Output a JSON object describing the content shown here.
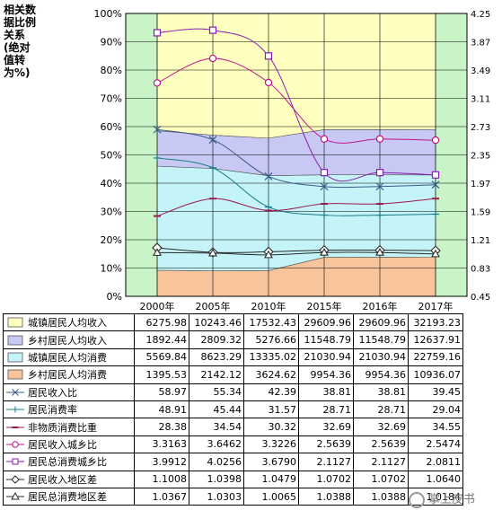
{
  "chart_data": {
    "type": "area",
    "ylabel_left": "相关数据比例关系(绝对值转为%)",
    "categories": [
      "2000年",
      "2005年",
      "2010年",
      "2015年",
      "2016年",
      "2017年"
    ],
    "y_left_ticks": [
      "0%",
      "10%",
      "20%",
      "30%",
      "40%",
      "50%",
      "60%",
      "70%",
      "80%",
      "90%",
      "100%"
    ],
    "y_right_ticks": [
      "0.45",
      "0.83",
      "1.21",
      "1.59",
      "1.97",
      "2.35",
      "2.73",
      "3.11",
      "3.49",
      "3.87",
      "4.25"
    ],
    "ylim_left": [
      0,
      100
    ],
    "ylim_right": [
      0.45,
      4.25
    ],
    "grid": true,
    "area_series": [
      {
        "name": "城镇居民人均收入",
        "color": "#ffffc0",
        "values": [
          6275.98,
          10243.46,
          17532.43,
          29609.96,
          29609.96,
          32193.23
        ]
      },
      {
        "name": "乡村居民人均收入",
        "color": "#c8c8f4",
        "values": [
          1892.44,
          2809.32,
          5276.66,
          11548.79,
          11548.79,
          12637.91
        ]
      },
      {
        "name": "城镇居民人均消费",
        "color": "#c4f4f8",
        "values": [
          5569.84,
          8623.29,
          13335.02,
          21030.94,
          21030.94,
          22759.16
        ]
      },
      {
        "name": "乡村居民人均消费",
        "color": "#f8c49c",
        "values": [
          1395.53,
          2142.12,
          3624.62,
          9954.36,
          9954.36,
          10936.07
        ]
      }
    ],
    "percent_series": [
      {
        "name": "居民收入比",
        "marker": "x",
        "color": "#3a5a8a",
        "values": [
          58.97,
          55.34,
          42.39,
          38.81,
          38.81,
          39.45
        ]
      },
      {
        "name": "居民消费率",
        "marker": "plus",
        "color": "#1a7a8a",
        "values": [
          48.91,
          45.44,
          31.57,
          28.71,
          28.71,
          29.04
        ]
      },
      {
        "name": "非物质消费比重",
        "marker": "dash",
        "color": "#9a1a4a",
        "values": [
          28.38,
          34.54,
          30.32,
          32.69,
          32.69,
          34.55
        ]
      }
    ],
    "ratio_series": [
      {
        "name": "居民收入城乡比",
        "marker": "circle",
        "color": "#c0158a",
        "values": [
          3.3163,
          3.6462,
          3.3226,
          2.5639,
          2.5639,
          2.5474
        ]
      },
      {
        "name": "居民总消费城乡比",
        "marker": "square",
        "color": "#8a1ab0",
        "values": [
          3.9912,
          4.0256,
          3.679,
          2.1127,
          2.1127,
          2.0811
        ]
      },
      {
        "name": "居民收入地区差",
        "marker": "diamond",
        "color": "#2a2a2a",
        "values": [
          1.1008,
          1.0398,
          1.0479,
          1.0702,
          1.0702,
          1.064
        ]
      },
      {
        "name": "居民总消费地区差",
        "marker": "triangle",
        "color": "#2a2a2a",
        "values": [
          1.0367,
          1.0303,
          1.0065,
          1.0388,
          1.0388,
          1.0184
        ]
      }
    ],
    "table": {
      "rows": [
        {
          "label": "城镇居民人均收入",
          "legend": "area",
          "color": "#ffffc0",
          "cells": [
            "6275.98",
            "10243.46",
            "17532.43",
            "29609.96",
            "29609.96",
            "32193.23"
          ]
        },
        {
          "label": "乡村居民人均收入",
          "legend": "area",
          "color": "#c8c8f4",
          "cells": [
            "1892.44",
            "2809.32",
            "5276.66",
            "11548.79",
            "11548.79",
            "12637.91"
          ]
        },
        {
          "label": "城镇居民人均消费",
          "legend": "area",
          "color": "#c4f4f8",
          "cells": [
            "5569.84",
            "8623.29",
            "13335.02",
            "21030.94",
            "21030.94",
            "22759.16"
          ]
        },
        {
          "label": "乡村居民人均消费",
          "legend": "area",
          "color": "#f8c49c",
          "cells": [
            "1395.53",
            "2142.12",
            "3624.62",
            "9954.36",
            "9954.36",
            "10936.07"
          ]
        },
        {
          "label": "居民收入比",
          "legend": "x",
          "color": "#3a5a8a",
          "cells": [
            "58.97",
            "55.34",
            "42.39",
            "38.81",
            "38.81",
            "39.45"
          ]
        },
        {
          "label": "居民消费率",
          "legend": "plus",
          "color": "#1a7a8a",
          "cells": [
            "48.91",
            "45.44",
            "31.57",
            "28.71",
            "28.71",
            "29.04"
          ]
        },
        {
          "label": "非物质消费比重",
          "legend": "dash",
          "color": "#9a1a4a",
          "cells": [
            "28.38",
            "34.54",
            "30.32",
            "32.69",
            "32.69",
            "34.55"
          ]
        },
        {
          "label": "居民收入城乡比",
          "legend": "circle",
          "color": "#c0158a",
          "cells": [
            "3.3163",
            "3.6462",
            "3.3226",
            "2.5639",
            "2.5639",
            "2.5474"
          ]
        },
        {
          "label": "居民总消费城乡比",
          "legend": "square",
          "color": "#8a1ab0",
          "cells": [
            "3.9912",
            "4.0256",
            "3.6790",
            "2.1127",
            "2.1127",
            "2.0811"
          ]
        },
        {
          "label": "居民收入地区差",
          "legend": "diamond",
          "color": "#2a2a2a",
          "cells": [
            "1.1008",
            "1.0398",
            "1.0479",
            "1.0702",
            "1.0702",
            "1.0640"
          ]
        },
        {
          "label": "居民总消费地区差",
          "legend": "triangle",
          "color": "#2a2a2a",
          "cells": [
            "1.0367",
            "1.0303",
            "1.0065",
            "1.0388",
            "1.0388",
            "1.0184"
          ]
        }
      ]
    },
    "colors": {
      "side_band": "#c8f4c8",
      "grid": "#000000"
    }
  },
  "watermark": {
    "text": "掌上皮书",
    "icon": "wechat-circle-icon"
  }
}
